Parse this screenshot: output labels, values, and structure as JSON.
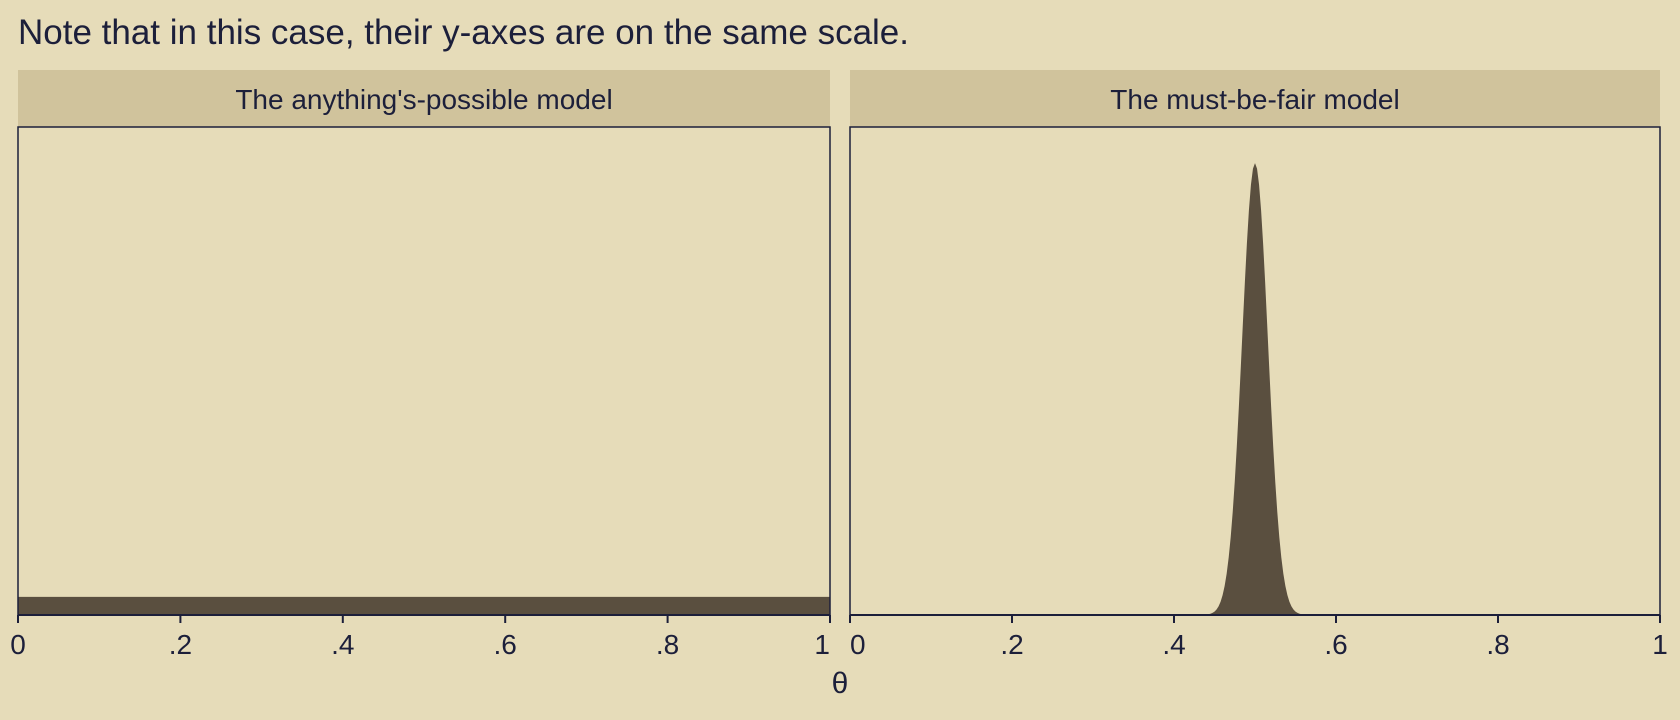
{
  "caption": "Note that in this case, their y-axes are on the same scale.",
  "chart_data": [
    {
      "type": "area",
      "title": "The anything's-possible model",
      "xlabel": "θ",
      "xlim": [
        0,
        1
      ],
      "ylim": [
        0,
        27
      ],
      "x_ticks": [
        0,
        0.2,
        0.4,
        0.6,
        0.8,
        1
      ],
      "x_tick_labels": [
        "0",
        ".2",
        ".4",
        ".6",
        ".8",
        "1"
      ],
      "y_axis_shown": false,
      "distribution": "uniform",
      "series": [
        {
          "x": [
            0,
            1
          ],
          "y": [
            1,
            1
          ]
        }
      ]
    },
    {
      "type": "area",
      "title": "The must-be-fair model",
      "xlabel": "θ",
      "xlim": [
        0,
        1
      ],
      "ylim": [
        0,
        27
      ],
      "x_ticks": [
        0,
        0.2,
        0.4,
        0.6,
        0.8,
        1
      ],
      "x_tick_labels": [
        "0",
        ".2",
        ".4",
        ".6",
        ".8",
        "1"
      ],
      "y_axis_shown": false,
      "distribution": "normal",
      "mean": 0.5,
      "sd": 0.016,
      "peak_density": 25,
      "series": [
        {
          "x": [
            0.43,
            0.45,
            0.46,
            0.47,
            0.48,
            0.49,
            0.5,
            0.51,
            0.52,
            0.53,
            0.54,
            0.55,
            0.57
          ],
          "y": [
            0,
            0.2,
            0.9,
            4.2,
            11.5,
            20.6,
            25,
            20.6,
            11.5,
            4.2,
            0.9,
            0.2,
            0
          ]
        }
      ]
    }
  ],
  "colors": {
    "background": "#e6dcb9",
    "strip": "#d0c39c",
    "fill": "#5a4f3f",
    "axis": "#1c1f3a"
  }
}
